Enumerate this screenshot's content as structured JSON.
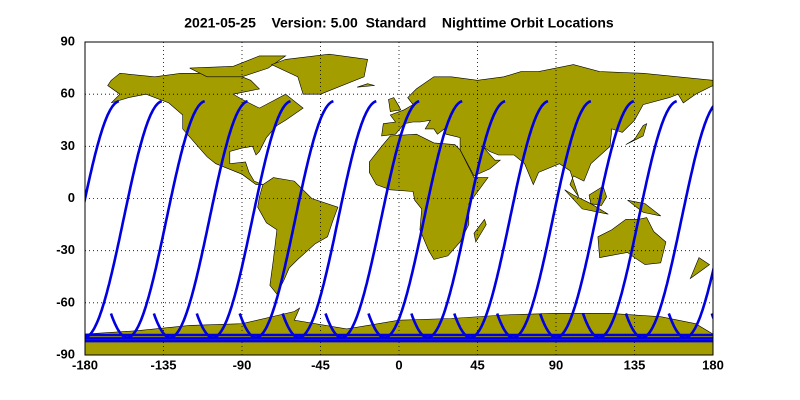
{
  "chart_data": {
    "type": "map",
    "title": "2021-05-25    Version: 5.00  Standard    Nighttime Orbit Locations",
    "xlim": [
      -180,
      180
    ],
    "ylim": [
      -90,
      90
    ],
    "xticks": [
      -180,
      -135,
      -90,
      -45,
      0,
      45,
      90,
      135,
      180
    ],
    "yticks": [
      90,
      60,
      30,
      0,
      -30,
      -60,
      -90
    ],
    "grid": true
  }
}
